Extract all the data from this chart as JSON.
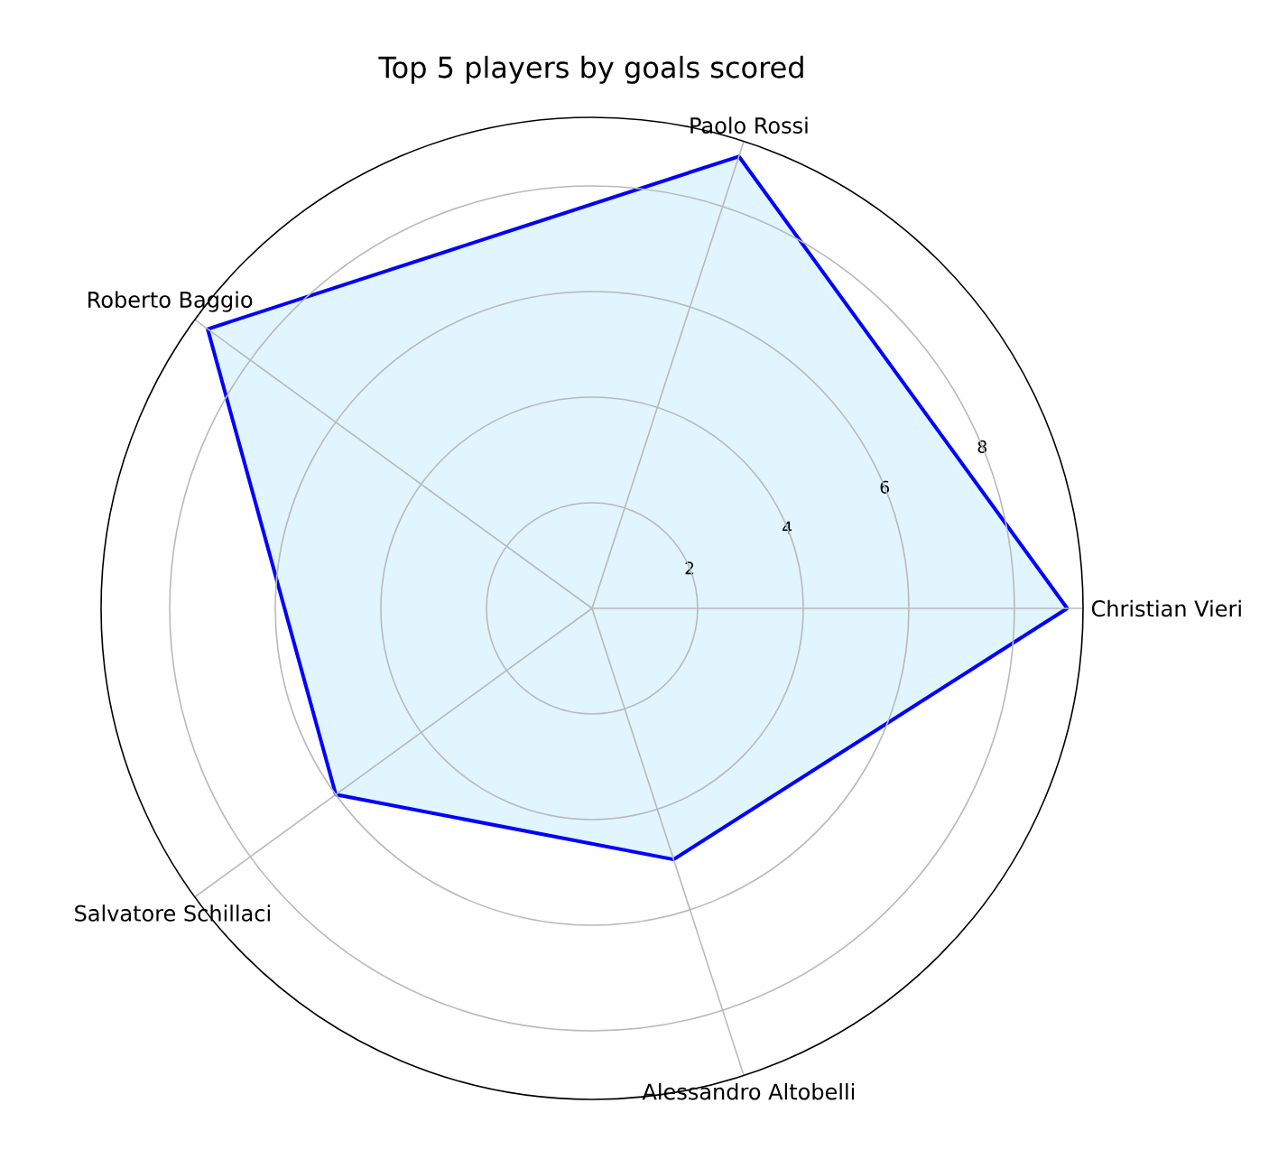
{
  "chart_data": {
    "type": "radar",
    "title": "Top 5 players by goals scored",
    "categories": [
      "Paolo Rossi",
      "Christian Vieri",
      "Alessandro Altobelli",
      "Salvatore Schillaci",
      "Roberto Baggio"
    ],
    "series": [
      {
        "color": "#0000ff",
        "values": [
          9,
          9,
          5,
          6,
          9
        ]
      }
    ],
    "ylim": [
      0,
      9.3
    ],
    "yticks": [
      2,
      4,
      6,
      8
    ],
    "grid": true
  }
}
